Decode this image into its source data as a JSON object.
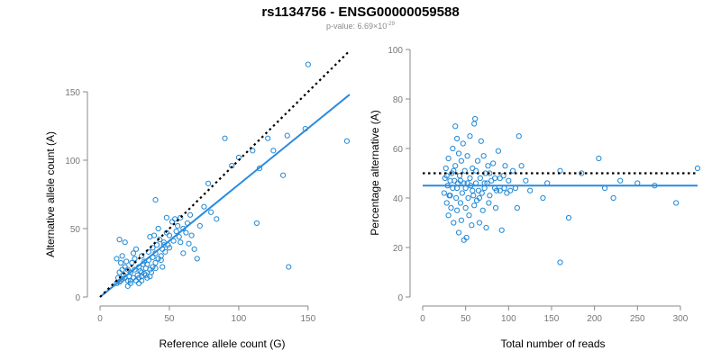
{
  "header": {
    "title": "rs1134756 - ENSG00000059588",
    "subtitle_prefix": "p-value: 6.69×10",
    "subtitle_exponent": "-29"
  },
  "chart_data": [
    {
      "type": "scatter",
      "xlabel": "Reference allele count (G)",
      "ylabel": "Alternative allele count (A)",
      "xlim": [
        0,
        180
      ],
      "ylim": [
        0,
        150
      ],
      "xticks": [
        0,
        50,
        100,
        150
      ],
      "yticks": [
        0,
        50,
        100,
        150
      ],
      "grid": false,
      "colors": {
        "points": "#1f88d6",
        "regression": "#2b8ae0",
        "reference": "#000000"
      },
      "reference_line": {
        "style": "dotted",
        "from": [
          0,
          0
        ],
        "to": [
          180,
          180
        ]
      },
      "regression_line": {
        "style": "solid",
        "from": [
          0,
          0
        ],
        "to": [
          180,
          148
        ]
      },
      "points": [
        [
          12,
          10
        ],
        [
          13,
          14
        ],
        [
          14,
          11
        ],
        [
          15,
          12
        ],
        [
          15,
          25
        ],
        [
          16,
          13
        ],
        [
          17,
          16
        ],
        [
          18,
          14
        ],
        [
          18,
          22
        ],
        [
          19,
          26
        ],
        [
          20,
          20
        ],
        [
          20,
          12
        ],
        [
          21,
          15
        ],
        [
          22,
          18
        ],
        [
          22,
          10
        ],
        [
          23,
          25
        ],
        [
          24,
          14
        ],
        [
          25,
          20
        ],
        [
          25,
          28
        ],
        [
          26,
          12
        ],
        [
          27,
          16
        ],
        [
          28,
          22
        ],
        [
          28,
          10
        ],
        [
          29,
          19
        ],
        [
          30,
          30
        ],
        [
          30,
          15
        ],
        [
          31,
          24
        ],
        [
          32,
          17
        ],
        [
          33,
          21
        ],
        [
          34,
          14
        ],
        [
          35,
          27
        ],
        [
          35,
          33
        ],
        [
          36,
          20
        ],
        [
          37,
          18
        ],
        [
          38,
          29
        ],
        [
          38,
          36
        ],
        [
          39,
          45
        ],
        [
          40,
          25
        ],
        [
          40,
          32
        ],
        [
          41,
          38
        ],
        [
          42,
          28
        ],
        [
          43,
          42
        ],
        [
          44,
          30
        ],
        [
          45,
          35
        ],
        [
          45,
          22
        ],
        [
          46,
          40
        ],
        [
          47,
          33
        ],
        [
          48,
          47
        ],
        [
          49,
          38
        ],
        [
          50,
          45
        ],
        [
          50,
          36
        ],
        [
          52,
          55
        ],
        [
          53,
          41
        ],
        [
          55,
          48
        ],
        [
          56,
          52
        ],
        [
          57,
          44
        ],
        [
          58,
          58
        ],
        [
          60,
          50
        ],
        [
          62,
          47
        ],
        [
          63,
          54
        ],
        [
          65,
          60
        ],
        [
          66,
          45
        ],
        [
          68,
          35
        ],
        [
          70,
          28
        ],
        [
          72,
          52
        ],
        [
          75,
          66
        ],
        [
          78,
          83
        ],
        [
          80,
          62
        ],
        [
          84,
          57
        ],
        [
          90,
          116
        ],
        [
          95,
          96
        ],
        [
          100,
          102
        ],
        [
          110,
          107
        ],
        [
          113,
          54
        ],
        [
          115,
          94
        ],
        [
          121,
          116
        ],
        [
          125,
          107
        ],
        [
          132,
          89
        ],
        [
          135,
          118
        ],
        [
          136,
          22
        ],
        [
          150,
          170
        ],
        [
          148,
          123
        ],
        [
          178,
          114
        ],
        [
          14,
          42
        ],
        [
          18,
          40
        ],
        [
          12,
          28
        ],
        [
          16,
          30
        ],
        [
          20,
          8
        ],
        [
          24,
          32
        ],
        [
          26,
          35
        ],
        [
          30,
          18
        ],
        [
          32,
          26
        ],
        [
          34,
          24
        ],
        [
          36,
          44
        ],
        [
          40,
          71
        ],
        [
          42,
          50
        ],
        [
          44,
          27
        ],
        [
          46,
          38
        ],
        [
          48,
          58
        ],
        [
          54,
          57
        ],
        [
          58,
          40
        ],
        [
          60,
          32
        ],
        [
          64,
          39
        ],
        [
          14,
          18
        ],
        [
          16,
          20
        ],
        [
          22,
          12
        ],
        [
          28,
          14
        ],
        [
          30,
          12
        ],
        [
          33,
          16
        ],
        [
          36,
          15
        ],
        [
          38,
          22
        ],
        [
          40,
          21
        ]
      ]
    },
    {
      "type": "scatter",
      "xlabel": "Total number of reads",
      "ylabel": "Percentage alternative (A)",
      "xlim": [
        0,
        320
      ],
      "ylim": [
        0,
        100
      ],
      "xticks": [
        0,
        50,
        100,
        150,
        200,
        250,
        300
      ],
      "yticks": [
        0,
        20,
        40,
        60,
        80,
        100
      ],
      "grid": false,
      "colors": {
        "points": "#1f88d6",
        "regression": "#2b8ae0",
        "reference": "#000000"
      },
      "reference_line": {
        "style": "dotted",
        "y": 50
      },
      "regression_line": {
        "style": "solid",
        "y": 45
      },
      "points": [
        [
          25,
          42
        ],
        [
          26,
          48
        ],
        [
          27,
          52
        ],
        [
          28,
          38
        ],
        [
          29,
          45
        ],
        [
          30,
          33
        ],
        [
          30,
          56
        ],
        [
          31,
          41
        ],
        [
          32,
          47
        ],
        [
          33,
          36
        ],
        [
          34,
          50
        ],
        [
          35,
          44
        ],
        [
          35,
          60
        ],
        [
          36,
          30
        ],
        [
          37,
          47
        ],
        [
          38,
          53
        ],
        [
          38,
          69
        ],
        [
          39,
          40
        ],
        [
          40,
          35
        ],
        [
          40,
          64
        ],
        [
          41,
          46
        ],
        [
          42,
          26
        ],
        [
          42,
          58
        ],
        [
          43,
          49
        ],
        [
          44,
          38
        ],
        [
          45,
          55
        ],
        [
          45,
          31
        ],
        [
          46,
          42
        ],
        [
          47,
          62
        ],
        [
          48,
          23
        ],
        [
          48,
          46
        ],
        [
          49,
          51
        ],
        [
          50,
          36
        ],
        [
          50,
          44
        ],
        [
          51,
          24
        ],
        [
          52,
          57
        ],
        [
          53,
          40
        ],
        [
          54,
          33
        ],
        [
          55,
          48
        ],
        [
          55,
          65
        ],
        [
          56,
          45
        ],
        [
          57,
          29
        ],
        [
          58,
          52
        ],
        [
          59,
          41
        ],
        [
          60,
          37
        ],
        [
          60,
          70
        ],
        [
          61,
          72
        ],
        [
          62,
          46
        ],
        [
          63,
          39
        ],
        [
          64,
          55
        ],
        [
          65,
          43
        ],
        [
          66,
          30
        ],
        [
          67,
          48
        ],
        [
          68,
          63
        ],
        [
          69,
          42
        ],
        [
          70,
          35
        ],
        [
          71,
          57
        ],
        [
          72,
          44
        ],
        [
          73,
          50
        ],
        [
          74,
          28
        ],
        [
          75,
          46
        ],
        [
          76,
          53
        ],
        [
          77,
          38
        ],
        [
          78,
          41
        ],
        [
          80,
          47
        ],
        [
          82,
          54
        ],
        [
          84,
          44
        ],
        [
          85,
          36
        ],
        [
          86,
          43
        ],
        [
          88,
          59
        ],
        [
          90,
          48
        ],
        [
          92,
          27
        ],
        [
          94,
          49
        ],
        [
          95,
          44
        ],
        [
          96,
          53
        ],
        [
          98,
          42
        ],
        [
          100,
          47
        ],
        [
          102,
          43
        ],
        [
          105,
          51
        ],
        [
          108,
          44
        ],
        [
          110,
          36
        ],
        [
          112,
          65
        ],
        [
          115,
          53
        ],
        [
          120,
          47
        ],
        [
          125,
          43
        ],
        [
          140,
          40
        ],
        [
          145,
          46
        ],
        [
          160,
          14
        ],
        [
          160,
          51
        ],
        [
          170,
          32
        ],
        [
          185,
          50
        ],
        [
          205,
          56
        ],
        [
          212,
          44
        ],
        [
          222,
          40
        ],
        [
          230,
          47
        ],
        [
          250,
          46
        ],
        [
          270,
          45
        ],
        [
          295,
          38
        ],
        [
          320,
          52
        ],
        [
          28,
          49
        ],
        [
          32,
          41
        ],
        [
          36,
          51
        ],
        [
          40,
          44
        ],
        [
          44,
          47
        ],
        [
          52,
          46
        ],
        [
          58,
          43
        ],
        [
          62,
          51
        ],
        [
          66,
          40
        ],
        [
          72,
          46
        ],
        [
          78,
          50
        ],
        [
          84,
          48
        ],
        [
          90,
          43
        ]
      ]
    }
  ]
}
